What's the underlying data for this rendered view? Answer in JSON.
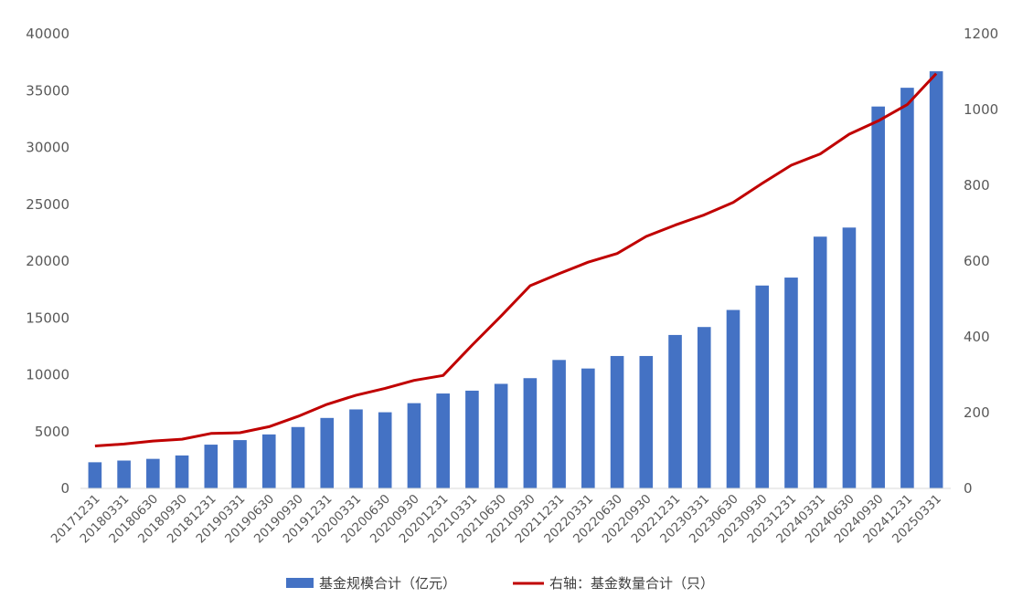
{
  "chart_data": {
    "type": "bar+line",
    "categories": [
      "20171231",
      "20180331",
      "20180630",
      "20180930",
      "20181231",
      "20190331",
      "20190630",
      "20190930",
      "20191231",
      "20200331",
      "20200630",
      "20200930",
      "20201231",
      "20210331",
      "20210630",
      "20210930",
      "20211231",
      "20220331",
      "20220630",
      "20220930",
      "20221231",
      "20230331",
      "20230630",
      "20230930",
      "20231231",
      "20240331",
      "20240630",
      "20240930",
      "20241231",
      "20250331"
    ],
    "series": [
      {
        "name": "基金规模合计（亿元）",
        "type": "bar",
        "axis": "left",
        "color": "#4472C4",
        "values": [
          2300,
          2450,
          2600,
          2900,
          3850,
          4250,
          4750,
          5400,
          6200,
          6950,
          6700,
          7500,
          8350,
          8600,
          9200,
          9700,
          11300,
          10550,
          11650,
          11650,
          13500,
          14200,
          15700,
          17850,
          18550,
          22150,
          22950,
          33600,
          35250,
          36700
        ]
      },
      {
        "name": "右轴：基金数量合计（只）",
        "type": "line",
        "axis": "right",
        "color": "#C00000",
        "values": [
          112,
          117,
          125,
          130,
          145,
          147,
          163,
          190,
          222,
          246,
          264,
          285,
          298,
          378,
          455,
          535,
          567,
          597,
          620,
          665,
          695,
          722,
          755,
          805,
          853,
          883,
          935,
          970,
          1013,
          1095
        ]
      }
    ],
    "yaxis_left": {
      "min": 0,
      "max": 40000,
      "ticks": [
        "0",
        "5000",
        "10000",
        "15000",
        "20000",
        "25000",
        "30000",
        "35000",
        "40000"
      ]
    },
    "yaxis_right": {
      "min": 0,
      "max": 1200,
      "ticks": [
        "0",
        "200",
        "400",
        "600",
        "800",
        "1000",
        "1200"
      ]
    },
    "legend_position": "bottom-center",
    "grid": false
  }
}
